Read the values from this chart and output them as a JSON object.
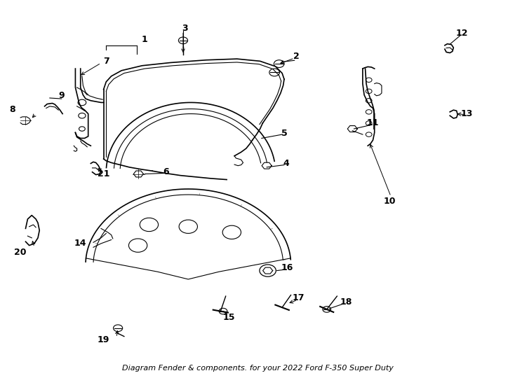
{
  "title": "Diagram Fender & components. for your 2022 Ford F-350 Super Duty",
  "background_color": "#ffffff",
  "line_color": "#000000",
  "label_color": "#000000",
  "font_size_labels": 9,
  "font_size_title": 8
}
